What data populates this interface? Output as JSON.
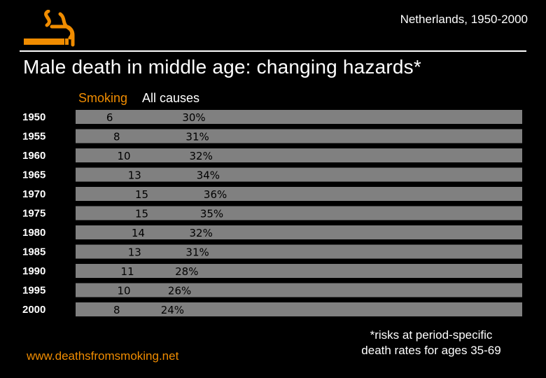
{
  "header": {
    "region": "Netherlands, 1950-2000",
    "title": "Male death in middle age: changing hazards*"
  },
  "legend": {
    "smoking": "Smoking",
    "all_causes": "All causes"
  },
  "colors": {
    "background": "#000000",
    "smoking": "#f08c00",
    "all_causes": "#808080",
    "text": "#ffffff"
  },
  "icons": {
    "logo": "cigarette-smoke-icon"
  },
  "chart_data": {
    "type": "bar",
    "orientation": "horizontal",
    "categories": [
      "1950",
      "1955",
      "1960",
      "1965",
      "1970",
      "1975",
      "1980",
      "1985",
      "1990",
      "1995",
      "2000"
    ],
    "series": [
      {
        "name": "Smoking",
        "values": [
          6,
          8,
          10,
          13,
          15,
          15,
          14,
          13,
          11,
          10,
          8
        ]
      },
      {
        "name": "All causes",
        "values": [
          30,
          31,
          32,
          34,
          36,
          35,
          32,
          31,
          28,
          26,
          24
        ]
      }
    ],
    "value_labels": {
      "Smoking": [
        "6",
        "8",
        "10",
        "13",
        "15",
        "15",
        "14",
        "13",
        "11",
        "10",
        "8"
      ],
      "All causes": [
        "30%",
        "31%",
        "32%",
        "34%",
        "36%",
        "35%",
        "32%",
        "31%",
        "28%",
        "26%",
        "24%"
      ]
    },
    "unit": "%",
    "grid": false
  },
  "footer": {
    "source": "www.deathsfromsmoking.net",
    "note_line1": "*risks at period-specific",
    "note_line2": "death rates for ages 35-69"
  }
}
